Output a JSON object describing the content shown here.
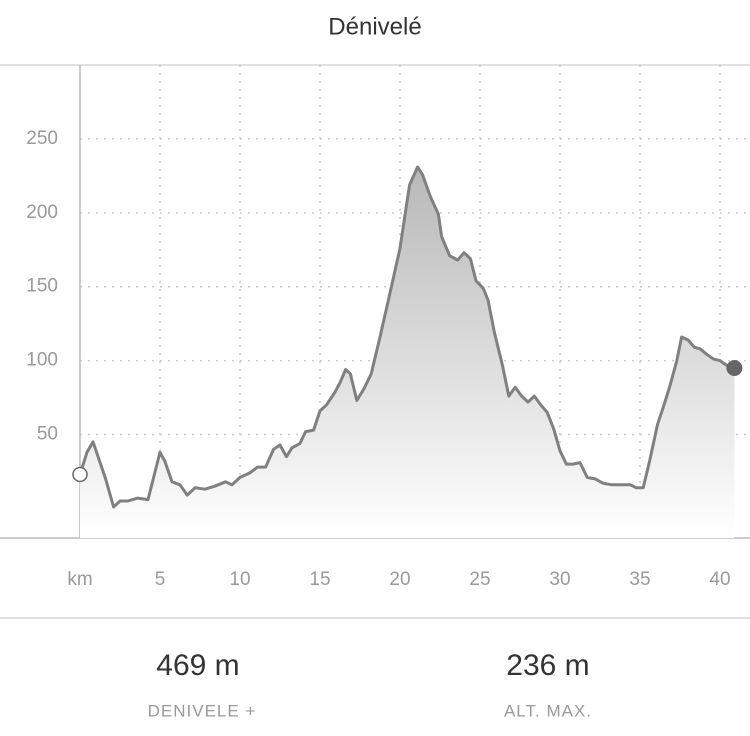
{
  "chart_data": {
    "type": "area-line",
    "title": "Dénivelé",
    "color": "#808080",
    "grid": true,
    "xlim": [
      -5,
      41.875
    ],
    "ylim": [
      -20,
      300
    ],
    "xticks": [
      {
        "value": 0,
        "label": "km"
      },
      5,
      10,
      15,
      20,
      25,
      30,
      35,
      40
    ],
    "yticks": [
      50,
      100,
      150,
      200,
      250
    ],
    "x": [
      0,
      0.44,
      0.81,
      1.1,
      1.6,
      2.1,
      2.5,
      3,
      3.6,
      4.25,
      5,
      5.3,
      5.75,
      6.25,
      6.7,
      7.2,
      7.8,
      8.4,
      9.1,
      9.5,
      10,
      10.6,
      11.1,
      11.6,
      12.1,
      12.5,
      12.9,
      13.25,
      13.75,
      14.1,
      14.6,
      15,
      15.4,
      15.9,
      16.25,
      16.6,
      16.9,
      17.3,
      17.75,
      18.2,
      18.75,
      19.4,
      20,
      20.6,
      21.1,
      21.4,
      21.9,
      22.4,
      22.6,
      23.1,
      23.6,
      24,
      24.4,
      24.75,
      25.2,
      25.5,
      25.9,
      26.4,
      26.8,
      27.2,
      27.6,
      28,
      28.4,
      28.8,
      29.2,
      29.6,
      30,
      30.4,
      30.8,
      31.25,
      31.7,
      32.2,
      32.7,
      33.25,
      33.9,
      34.4,
      34.75,
      35.2,
      35.6,
      36.1,
      36.5,
      36.9,
      37.3,
      37.6,
      38,
      38.4,
      38.75,
      39.2,
      39.6,
      40,
      40.4,
      40.9
    ],
    "values": [
      23,
      38,
      45,
      36,
      20,
      1,
      5,
      5,
      7,
      6,
      38,
      32,
      18,
      16,
      9,
      14,
      13,
      15,
      18,
      16,
      21,
      24,
      28,
      28,
      40,
      43,
      35,
      41,
      44,
      52,
      53,
      66,
      70,
      78,
      85,
      94,
      91,
      73,
      81,
      91,
      116,
      147,
      176,
      219,
      231,
      226,
      211,
      199,
      184,
      171,
      168,
      173,
      169,
      154,
      149,
      141,
      119,
      97,
      76,
      82,
      76,
      72,
      76,
      70,
      65,
      54,
      39,
      30,
      30,
      31,
      21,
      20,
      17,
      16,
      16,
      16,
      14,
      14,
      32,
      57,
      70,
      84,
      100,
      116,
      114,
      109,
      108,
      104,
      101,
      100,
      97,
      95
    ]
  },
  "stats": [
    {
      "value": "469 m",
      "label": "DENIVELE +"
    },
    {
      "value": "236 m",
      "label": "ALT. MAX."
    }
  ]
}
